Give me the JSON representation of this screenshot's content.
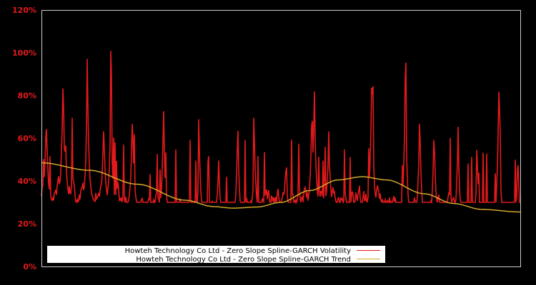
{
  "chart_data": {
    "type": "line",
    "title": "",
    "xlabel": "",
    "ylabel": "",
    "ylim": [
      0,
      120
    ],
    "y_ticks": [
      "0%",
      "20%",
      "40%",
      "60%",
      "80%",
      "100%",
      "120%"
    ],
    "y_tick_values": [
      0,
      20,
      40,
      60,
      80,
      100,
      120
    ],
    "grid": false,
    "legend_position": "lower-center",
    "background": "#000000",
    "axis_color": "#cccccc",
    "tick_color": "#e31a1c",
    "x_points": 670,
    "series": [
      {
        "name": "Howteh Technology Co Ltd - Zero Slope Spline-GARCH Volatility",
        "color": "#e31a1c",
        "baseline_anchors": [
          [
            0,
            30
          ],
          [
            0.1,
            30
          ],
          [
            0.2,
            27
          ],
          [
            0.3,
            21
          ],
          [
            0.4,
            21
          ],
          [
            0.5,
            25
          ],
          [
            0.55,
            27
          ],
          [
            0.63,
            27
          ],
          [
            0.7,
            26
          ],
          [
            0.8,
            20
          ],
          [
            0.9,
            18
          ],
          [
            1.0,
            18
          ]
        ],
        "peaks": [
          [
            0.01,
            74
          ],
          [
            0.045,
            97
          ],
          [
            0.05,
            64
          ],
          [
            0.096,
            95
          ],
          [
            0.13,
            70
          ],
          [
            0.145,
            78
          ],
          [
            0.19,
            76
          ],
          [
            0.255,
            78
          ],
          [
            0.33,
            60
          ],
          [
            0.37,
            52
          ],
          [
            0.41,
            70
          ],
          [
            0.445,
            62
          ],
          [
            0.51,
            48
          ],
          [
            0.565,
            80
          ],
          [
            0.57,
            86
          ],
          [
            0.6,
            64
          ],
          [
            0.69,
            101
          ],
          [
            0.76,
            95
          ],
          [
            0.79,
            79
          ],
          [
            0.82,
            70
          ],
          [
            0.87,
            70
          ],
          [
            0.91,
            57
          ],
          [
            0.955,
            92
          ],
          [
            0.995,
            55
          ]
        ]
      },
      {
        "name": "Howteh Technology Co Ltd - Zero Slope Spline-GARCH Trend",
        "color": "#d4a82a",
        "anchors": [
          [
            0,
            48.5
          ],
          [
            0.1,
            45
          ],
          [
            0.2,
            38.5
          ],
          [
            0.3,
            31
          ],
          [
            0.36,
            28
          ],
          [
            0.4,
            27.3
          ],
          [
            0.45,
            27.8
          ],
          [
            0.5,
            30
          ],
          [
            0.56,
            35.5
          ],
          [
            0.62,
            40.5
          ],
          [
            0.67,
            42
          ],
          [
            0.72,
            40.5
          ],
          [
            0.8,
            34
          ],
          [
            0.86,
            29.5
          ],
          [
            0.92,
            26.7
          ],
          [
            1.0,
            25.5
          ]
        ]
      }
    ]
  },
  "legend": {
    "items": [
      {
        "label": "Howteh Technology Co Ltd - Zero Slope Spline-GARCH Volatility",
        "color": "#e31a1c"
      },
      {
        "label": "Howteh Technology Co Ltd - Zero Slope Spline-GARCH Trend",
        "color": "#d4a82a"
      }
    ]
  }
}
